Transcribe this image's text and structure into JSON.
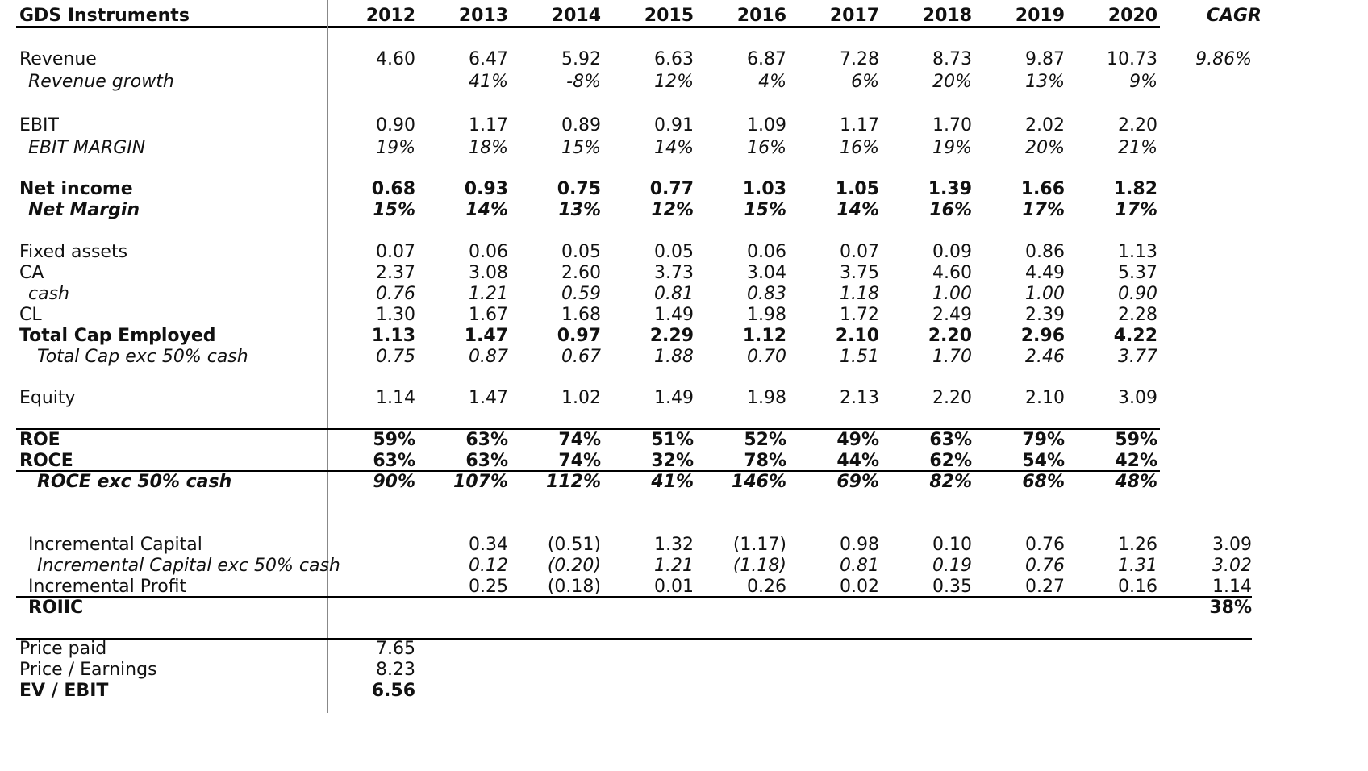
{
  "header": {
    "title": "GDS Instruments",
    "years": [
      "2012",
      "2013",
      "2014",
      "2015",
      "2016",
      "2017",
      "2018",
      "2019",
      "2020"
    ],
    "cagr_label": "CAGR"
  },
  "rows": [
    {
      "label": "Revenue",
      "style": "normal",
      "indent": 0,
      "values": [
        "4.60",
        "6.47",
        "5.92",
        "6.63",
        "6.87",
        "7.28",
        "8.73",
        "9.87",
        "10.73"
      ],
      "cagr": "9.86%",
      "cagr_style": "italic"
    },
    {
      "label": "Revenue growth",
      "style": "italic",
      "indent": 1,
      "values": [
        "",
        "41%",
        "-8%",
        "12%",
        "4%",
        "6%",
        "20%",
        "13%",
        "9%"
      ],
      "cagr": ""
    },
    {
      "label": "EBIT",
      "style": "normal",
      "indent": 0,
      "values": [
        "0.90",
        "1.17",
        "0.89",
        "0.91",
        "1.09",
        "1.17",
        "1.70",
        "2.02",
        "2.20"
      ],
      "cagr": ""
    },
    {
      "label": "EBIT MARGIN",
      "style": "italic",
      "indent": 1,
      "values": [
        "19%",
        "18%",
        "15%",
        "14%",
        "16%",
        "16%",
        "19%",
        "20%",
        "21%"
      ],
      "cagr": ""
    },
    {
      "label": "Net income",
      "style": "bold",
      "indent": 0,
      "values": [
        "0.68",
        "0.93",
        "0.75",
        "0.77",
        "1.03",
        "1.05",
        "1.39",
        "1.66",
        "1.82"
      ],
      "cagr": ""
    },
    {
      "label": "Net Margin",
      "style": "bold-italic",
      "indent": 1,
      "values": [
        "15%",
        "14%",
        "13%",
        "12%",
        "15%",
        "14%",
        "16%",
        "17%",
        "17%"
      ],
      "cagr": ""
    },
    {
      "label": "Fixed assets",
      "style": "normal",
      "indent": 0,
      "values": [
        "0.07",
        "0.06",
        "0.05",
        "0.05",
        "0.06",
        "0.07",
        "0.09",
        "0.86",
        "1.13"
      ],
      "cagr": ""
    },
    {
      "label": "CA",
      "style": "normal",
      "indent": 0,
      "values": [
        "2.37",
        "3.08",
        "2.60",
        "3.73",
        "3.04",
        "3.75",
        "4.60",
        "4.49",
        "5.37"
      ],
      "cagr": ""
    },
    {
      "label": "cash",
      "style": "italic",
      "indent": 1,
      "values": [
        "0.76",
        "1.21",
        "0.59",
        "0.81",
        "0.83",
        "1.18",
        "1.00",
        "1.00",
        "0.90"
      ],
      "cagr": ""
    },
    {
      "label": "CL",
      "style": "normal",
      "indent": 0,
      "values": [
        "1.30",
        "1.67",
        "1.68",
        "1.49",
        "1.98",
        "1.72",
        "2.49",
        "2.39",
        "2.28"
      ],
      "cagr": ""
    },
    {
      "label": "Total Cap Employed",
      "style": "bold",
      "indent": 0,
      "values": [
        "1.13",
        "1.47",
        "0.97",
        "2.29",
        "1.12",
        "2.10",
        "2.20",
        "2.96",
        "4.22"
      ],
      "cagr": ""
    },
    {
      "label": "Total Cap exc 50% cash",
      "style": "italic",
      "indent": 2,
      "values": [
        "0.75",
        "0.87",
        "0.67",
        "1.88",
        "0.70",
        "1.51",
        "1.70",
        "2.46",
        "3.77"
      ],
      "cagr": ""
    },
    {
      "label": "Equity",
      "style": "normal",
      "indent": 0,
      "values": [
        "1.14",
        "1.47",
        "1.02",
        "1.49",
        "1.98",
        "2.13",
        "2.20",
        "2.10",
        "3.09"
      ],
      "cagr": ""
    },
    {
      "label": "ROE",
      "style": "bold",
      "indent": 0,
      "values": [
        "59%",
        "63%",
        "74%",
        "51%",
        "52%",
        "49%",
        "63%",
        "79%",
        "59%"
      ],
      "cagr": ""
    },
    {
      "label": "ROCE",
      "style": "bold",
      "indent": 0,
      "values": [
        "63%",
        "63%",
        "74%",
        "32%",
        "78%",
        "44%",
        "62%",
        "54%",
        "42%"
      ],
      "cagr": ""
    },
    {
      "label": "ROCE exc 50% cash",
      "style": "bold-italic",
      "indent": 2,
      "values": [
        "90%",
        "107%",
        "112%",
        "41%",
        "146%",
        "69%",
        "82%",
        "68%",
        "48%"
      ],
      "cagr": ""
    },
    {
      "label": "Incremental Capital",
      "style": "normal",
      "indent": 1,
      "values": [
        "",
        "0.34",
        "(0.51)",
        "1.32",
        "(1.17)",
        "0.98",
        "0.10",
        "0.76",
        "1.26"
      ],
      "cagr": "3.09"
    },
    {
      "label": "Incremental Capital exc 50% cash",
      "style": "italic",
      "indent": 2,
      "values": [
        "",
        "0.12",
        "(0.20)",
        "1.21",
        "(1.18)",
        "0.81",
        "0.19",
        "0.76",
        "1.31"
      ],
      "cagr": "3.02",
      "cagr_style": "italic"
    },
    {
      "label": "Incremental Profit",
      "style": "normal",
      "indent": 1,
      "values": [
        "",
        "0.25",
        "(0.18)",
        "0.01",
        "0.26",
        "0.02",
        "0.35",
        "0.27",
        "0.16"
      ],
      "cagr": "1.14"
    },
    {
      "label": "ROIIC",
      "style": "bold",
      "indent": 1,
      "values": [
        "",
        "",
        "",
        "",
        "",
        "",
        "",
        "",
        ""
      ],
      "cagr": "38%",
      "cagr_style": "bold"
    },
    {
      "label": "Price paid",
      "style": "normal",
      "indent": 0,
      "values": [
        "7.65",
        "",
        "",
        "",
        "",
        "",
        "",
        "",
        ""
      ],
      "cagr": ""
    },
    {
      "label": "Price / Earnings",
      "style": "normal",
      "indent": 0,
      "values": [
        "8.23",
        "",
        "",
        "",
        "",
        "",
        "",
        "",
        ""
      ],
      "cagr": ""
    },
    {
      "label": "EV / EBIT",
      "style": "bold",
      "indent": 0,
      "values": [
        "6.56",
        "",
        "",
        "",
        "",
        "",
        "",
        "",
        ""
      ],
      "cagr": ""
    }
  ]
}
